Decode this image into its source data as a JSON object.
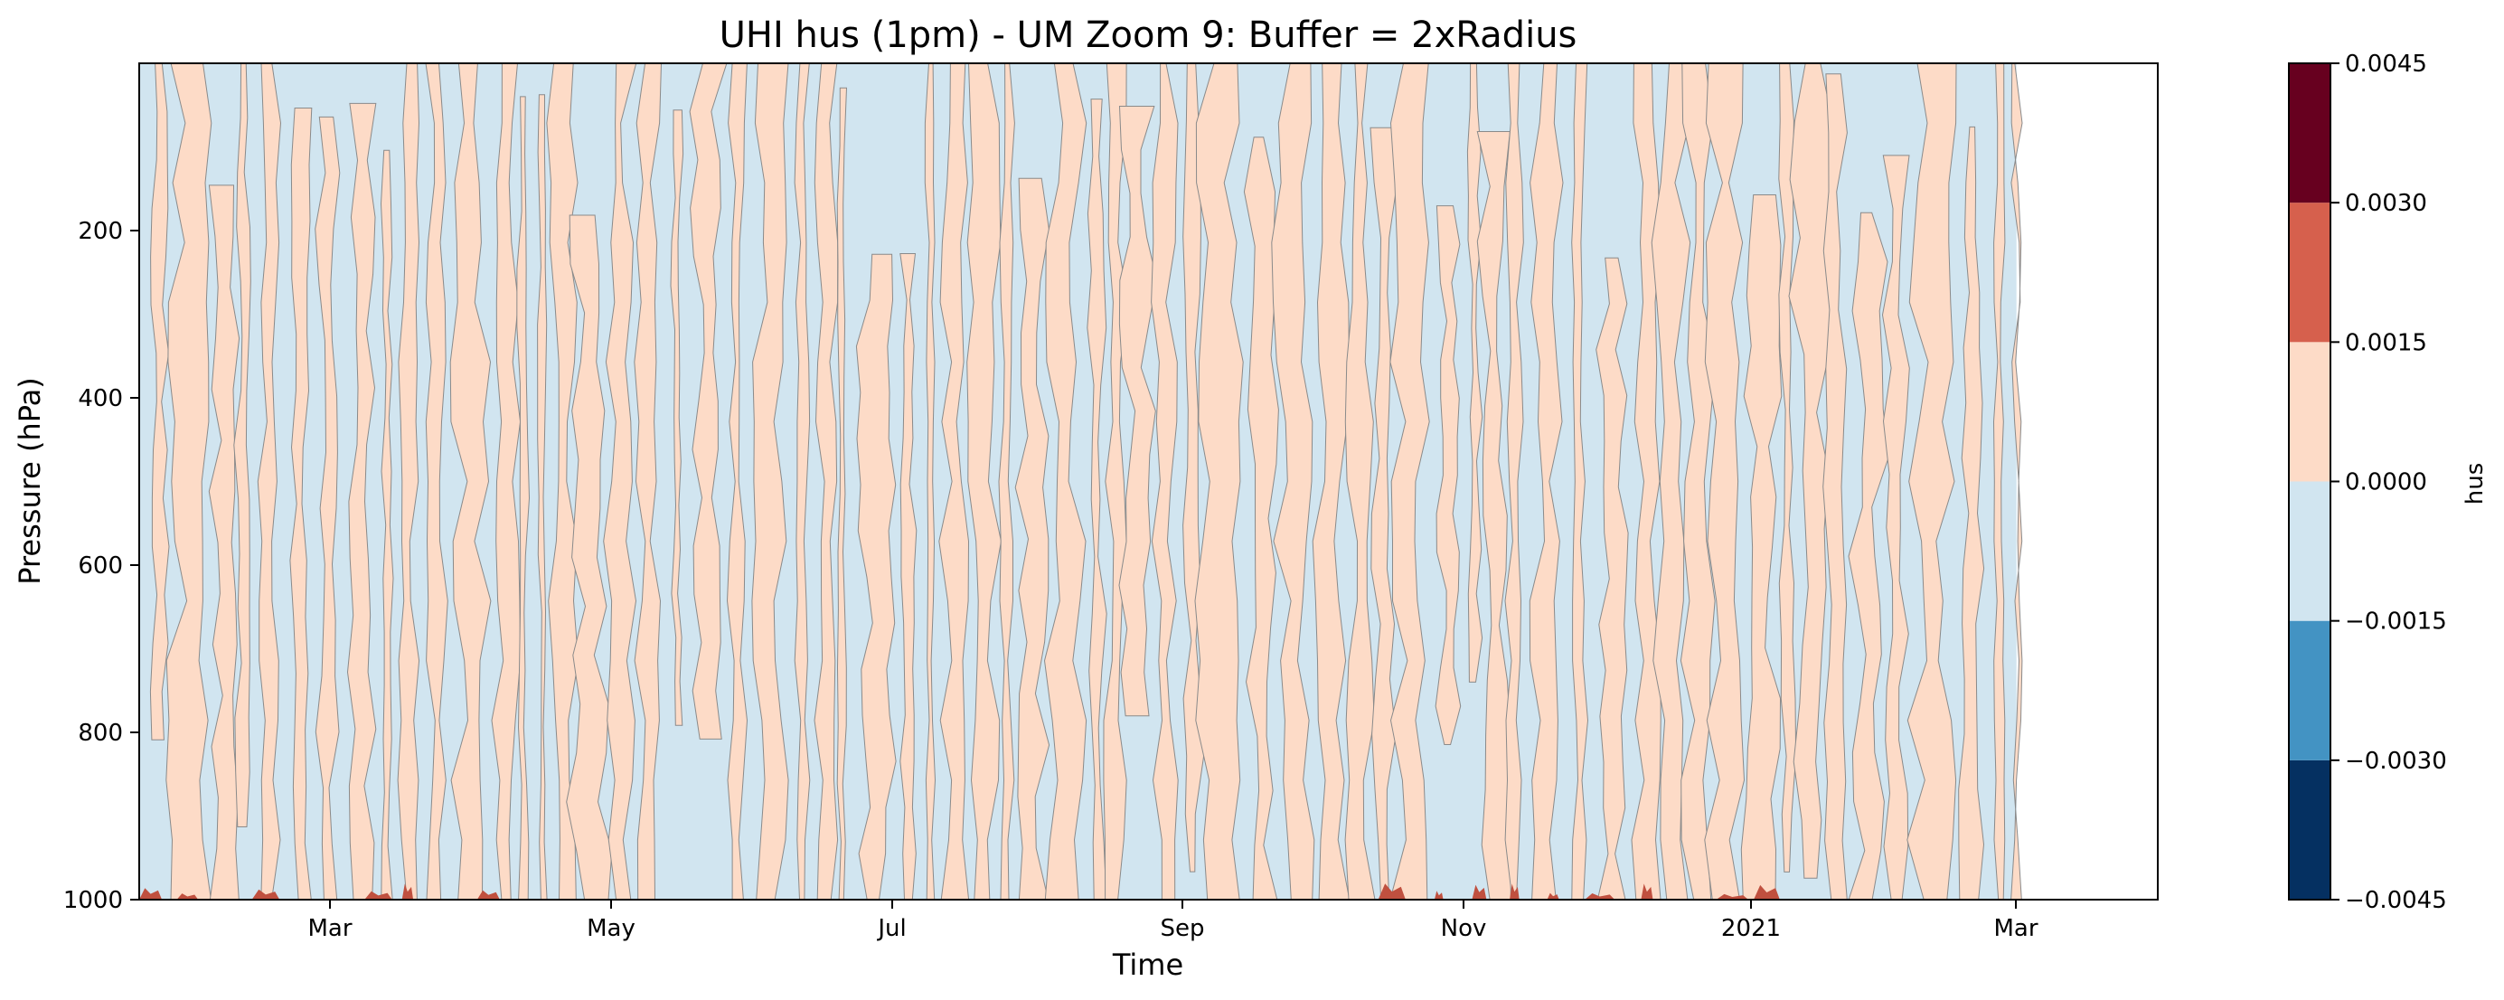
{
  "chart_data": {
    "type": "heatmap",
    "subtype": "filled-contour",
    "title": "UHI hus (1pm) - UM Zoom 9: Buffer = 2xRadius",
    "xlabel": "Time",
    "ylabel": "Pressure (hPa)",
    "x_ticks": [
      "Mar",
      "May",
      "Jul",
      "Sep",
      "Nov",
      "2021",
      "Mar"
    ],
    "y_ticks": [
      200,
      400,
      600,
      800,
      1000
    ],
    "ylim": [
      1000,
      0
    ],
    "colorbar": {
      "label": "hus",
      "levels": [
        -0.0045,
        -0.003,
        -0.0015,
        0.0,
        0.0015,
        0.003,
        0.0045
      ],
      "level_labels": [
        "−0.0045",
        "−0.0030",
        "−0.0015",
        "0.0000",
        "0.0015",
        "0.0030",
        "0.0045"
      ],
      "colors": [
        "#053061",
        "#4393c3",
        "#d1e5f0",
        "#fddbc7",
        "#d6604d",
        "#67001f"
      ]
    },
    "band_fill_colors": {
      "negative": "#d1e5f0",
      "positive": "#fddbc7",
      "high": "#c0503f"
    },
    "contour_line_color": "#8a8a8a",
    "x_time_data_fraction": [
      0.0,
      0.93
    ],
    "dominant_pattern": "vertical alternating bands of weakly negative (-0.0015 to 0) and weakly positive (0 to 0.0015) values; isolated 0.0015–0.0030 patches near 1000 hPa"
  }
}
